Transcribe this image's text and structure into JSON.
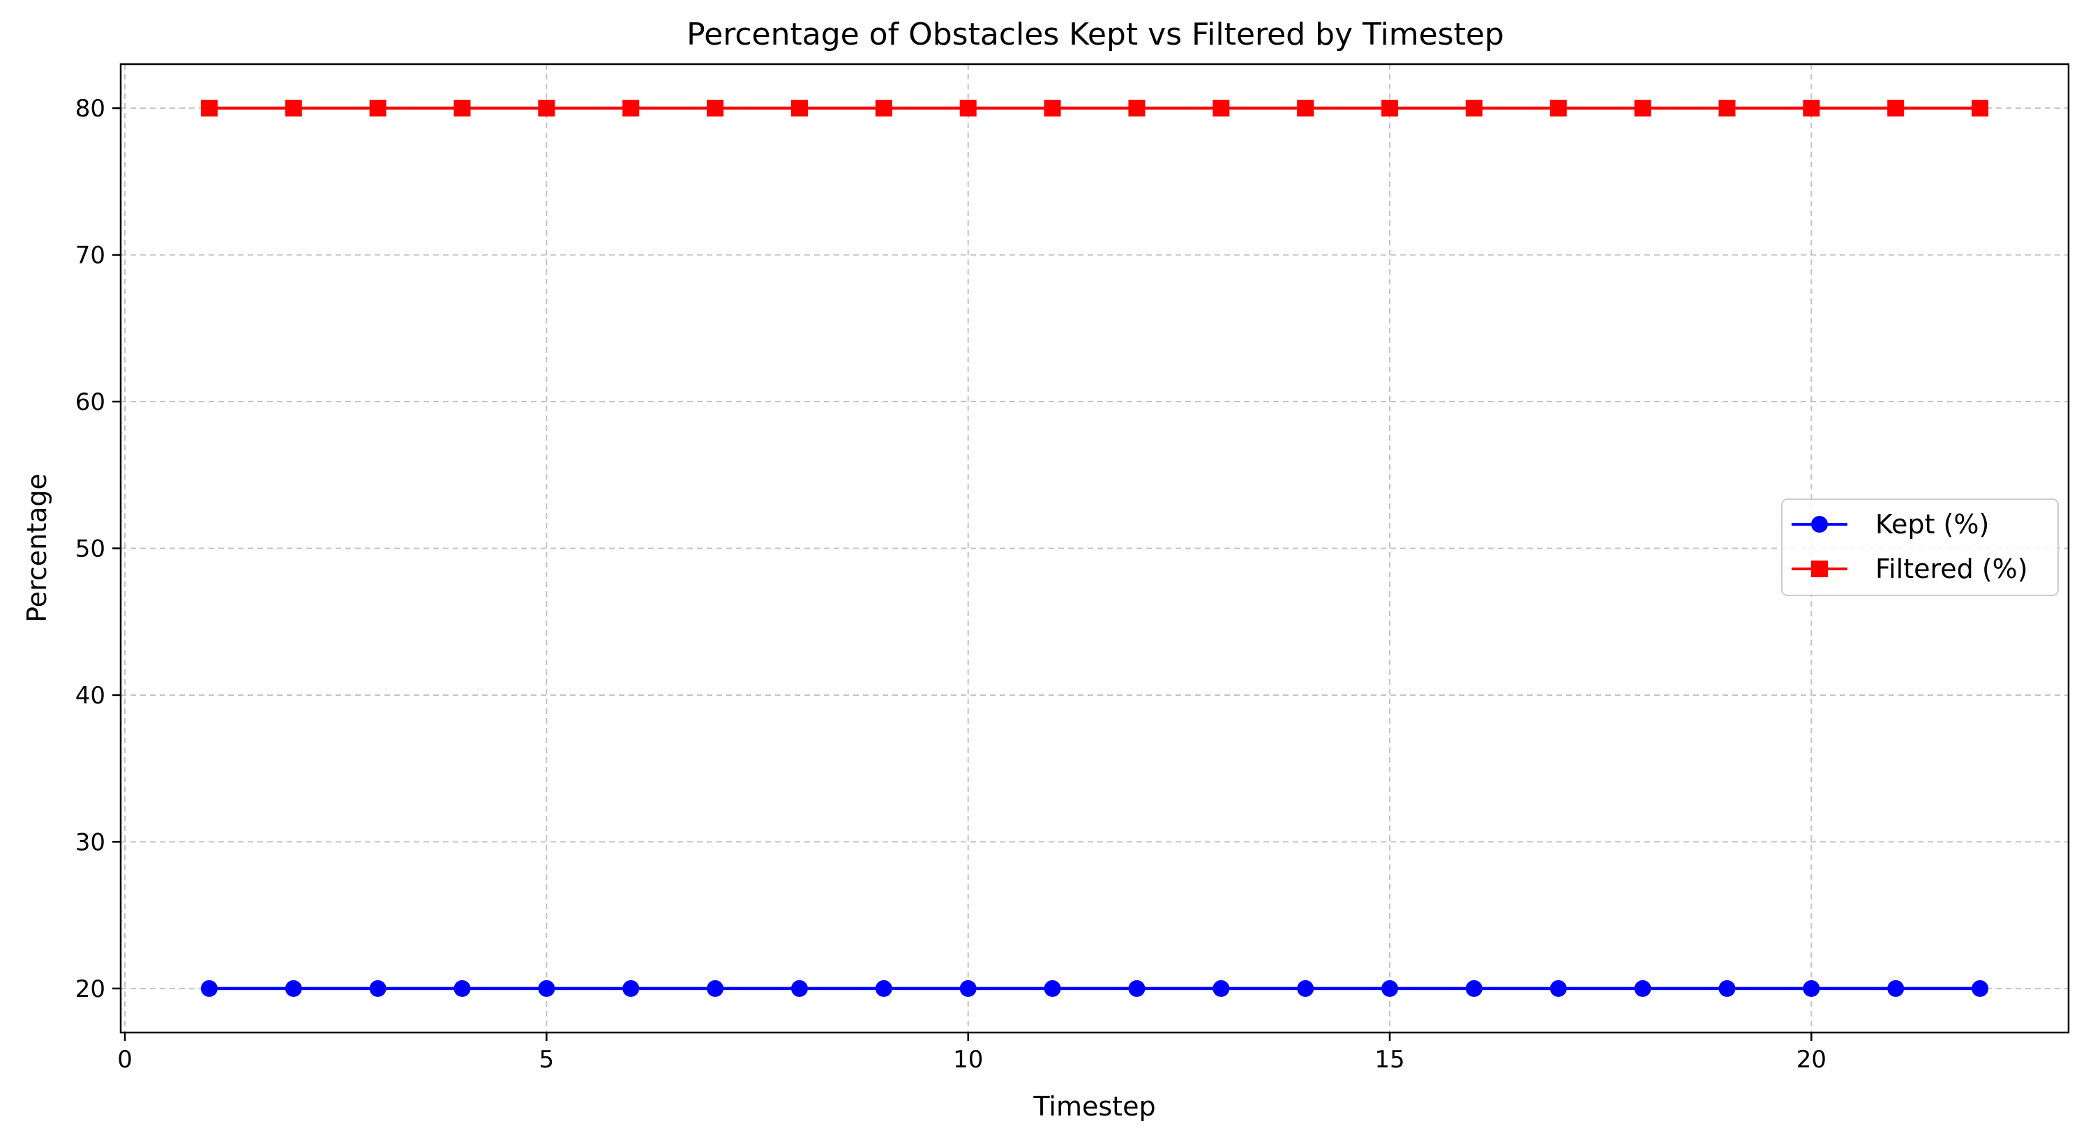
{
  "chart_data": {
    "type": "line",
    "title": "Percentage of Obstacles Kept vs Filtered by Timestep",
    "xlabel": "Timestep",
    "ylabel": "Percentage",
    "x": [
      1,
      2,
      3,
      4,
      5,
      6,
      7,
      8,
      9,
      10,
      11,
      12,
      13,
      14,
      15,
      16,
      17,
      18,
      19,
      20,
      21,
      22
    ],
    "xlim": [
      -0.05,
      23.05
    ],
    "ylim": [
      17,
      83
    ],
    "xticks": [
      0,
      5,
      10,
      15,
      20
    ],
    "yticks": [
      20,
      30,
      40,
      50,
      60,
      70,
      80
    ],
    "grid": true,
    "legend_position": "center-right",
    "series": [
      {
        "name": "Kept (%)",
        "color": "#0000ff",
        "marker": "circle",
        "values": [
          20,
          20,
          20,
          20,
          20,
          20,
          20,
          20,
          20,
          20,
          20,
          20,
          20,
          20,
          20,
          20,
          20,
          20,
          20,
          20,
          20,
          20
        ]
      },
      {
        "name": "Filtered (%)",
        "color": "#ff0000",
        "marker": "square",
        "values": [
          80,
          80,
          80,
          80,
          80,
          80,
          80,
          80,
          80,
          80,
          80,
          80,
          80,
          80,
          80,
          80,
          80,
          80,
          80,
          80,
          80,
          80
        ]
      }
    ]
  }
}
